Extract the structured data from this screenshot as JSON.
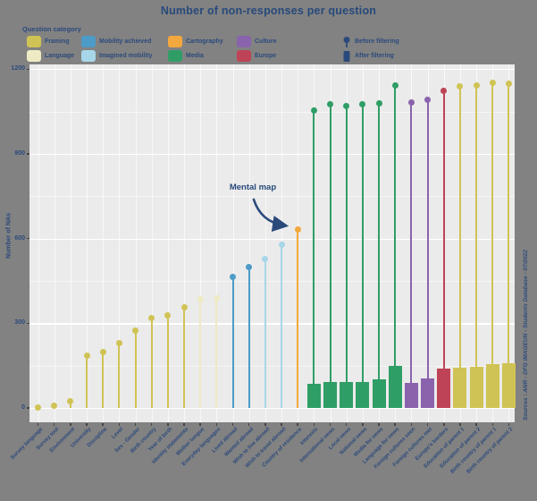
{
  "title": "Number of non-responses per question",
  "legend": {
    "title": "Question category",
    "items": [
      {
        "label": "Framing",
        "group": "framing",
        "color": "#d0c355"
      },
      {
        "label": "Language",
        "group": "language",
        "color": "#eeeac3"
      },
      {
        "label": "Mobility achieved",
        "group": "mobility_achieved",
        "color": "#4d9bc7"
      },
      {
        "label": "Imagined mobility",
        "group": "imagined_mobility",
        "color": "#a7d6e9"
      },
      {
        "label": "Cartography",
        "group": "cartography",
        "color": "#f3a83d"
      },
      {
        "label": "Media",
        "group": "media",
        "color": "#2f9e66"
      },
      {
        "label": "Culture",
        "group": "culture",
        "color": "#8a63ad"
      },
      {
        "label": "Europe",
        "group": "europe",
        "color": "#bf4356"
      }
    ],
    "filter_items": [
      {
        "label": "Before filtering",
        "type": "pin"
      },
      {
        "label": "After filtering",
        "type": "bar"
      }
    ]
  },
  "annotation": {
    "text": "Mental map"
  },
  "source": "Sources : ANR - DFG IMAGEUN - Students Database - 07/2022",
  "colors": {
    "text_navy": "#2b4a7c",
    "background": "#828282",
    "panel": "#ebebeb"
  },
  "chart_data": {
    "type": "lollipop+bar",
    "title": "Number of non-responses per question",
    "xlabel": "",
    "ylabel": "Number of NAs",
    "ylim": [
      0,
      1200
    ],
    "yticks": [
      0,
      300,
      600,
      900,
      1200
    ],
    "yticks_minor": [
      150,
      450,
      750,
      1050
    ],
    "grid": true,
    "legend_position": "top",
    "categories": [
      "Survey language",
      "Survey tool",
      "Environment",
      "University",
      "Discipline",
      "Level",
      "Sex - Gender",
      "Birth country",
      "Year of birth",
      "Identity statements",
      "Mother tongue",
      "Everyday languages",
      "Lived abroad",
      "Wanted abroad",
      "Wish to live abroad",
      "Wish to travel abroad",
      "Country of residence",
      "Interests",
      "International news",
      "Local news",
      "National news",
      "Media for news",
      "Language for news",
      "Foreign cultures seen",
      "Foreign cultures met",
      "Europe's borders",
      "Education of parent 1",
      "Education of parent 2",
      "Birth country of parent 1",
      "Birth country of parent 2"
    ],
    "category_groups": [
      "framing",
      "framing",
      "framing",
      "framing",
      "framing",
      "framing",
      "framing",
      "framing",
      "framing",
      "framing",
      "language",
      "language",
      "mobility_achieved",
      "mobility_achieved",
      "imagined_mobility",
      "imagined_mobility",
      "cartography",
      "media",
      "media",
      "media",
      "media",
      "media",
      "media",
      "culture",
      "culture",
      "europe",
      "framing",
      "framing",
      "framing",
      "framing"
    ],
    "group_colors": {
      "framing": "#d0c355",
      "language": "#eeeac3",
      "mobility_achieved": "#4d9bc7",
      "imagined_mobility": "#a7d6e9",
      "cartography": "#f3a83d",
      "media": "#2f9e66",
      "culture": "#8a63ad",
      "europe": "#bf4356"
    },
    "series": [
      {
        "name": "Before filtering",
        "style": "lollipop",
        "values": [
          3,
          8,
          25,
          185,
          197,
          230,
          273,
          318,
          328,
          358,
          385,
          388,
          465,
          500,
          528,
          577,
          632,
          1055,
          1075,
          1071,
          1075,
          1078,
          1143,
          1081,
          1091,
          1124,
          1140,
          1141,
          1151,
          1148
        ]
      },
      {
        "name": "After filtering",
        "style": "bar",
        "values": [
          null,
          null,
          null,
          null,
          null,
          null,
          null,
          null,
          null,
          null,
          null,
          null,
          null,
          null,
          null,
          null,
          null,
          85,
          92,
          92,
          92,
          100,
          150,
          90,
          106,
          140,
          144,
          146,
          154,
          158
        ]
      }
    ],
    "annotated_point": {
      "category": "Country of residence",
      "label": "Mental map"
    }
  }
}
